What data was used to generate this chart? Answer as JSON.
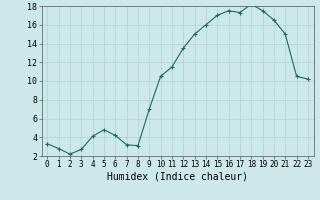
{
  "x": [
    0,
    1,
    2,
    3,
    4,
    5,
    6,
    7,
    8,
    9,
    10,
    11,
    12,
    13,
    14,
    15,
    16,
    17,
    18,
    19,
    20,
    21,
    22,
    23
  ],
  "y": [
    3.3,
    2.8,
    2.2,
    2.7,
    4.1,
    4.8,
    4.2,
    3.2,
    3.1,
    7.0,
    10.5,
    11.5,
    13.5,
    15.0,
    16.0,
    17.0,
    17.5,
    17.3,
    18.2,
    17.5,
    16.5,
    15.0,
    10.5,
    10.2
  ],
  "ylim": [
    2,
    18
  ],
  "yticks": [
    2,
    4,
    6,
    8,
    10,
    12,
    14,
    16,
    18
  ],
  "xticks": [
    0,
    1,
    2,
    3,
    4,
    5,
    6,
    7,
    8,
    9,
    10,
    11,
    12,
    13,
    14,
    15,
    16,
    17,
    18,
    19,
    20,
    21,
    22,
    23
  ],
  "xlabel": "Humidex (Indice chaleur)",
  "line_color": "#1a6b5a",
  "marker": "+",
  "bg_color": "#cce8e8",
  "grid_color": "#b0d0d0",
  "axes_color": "#555555"
}
